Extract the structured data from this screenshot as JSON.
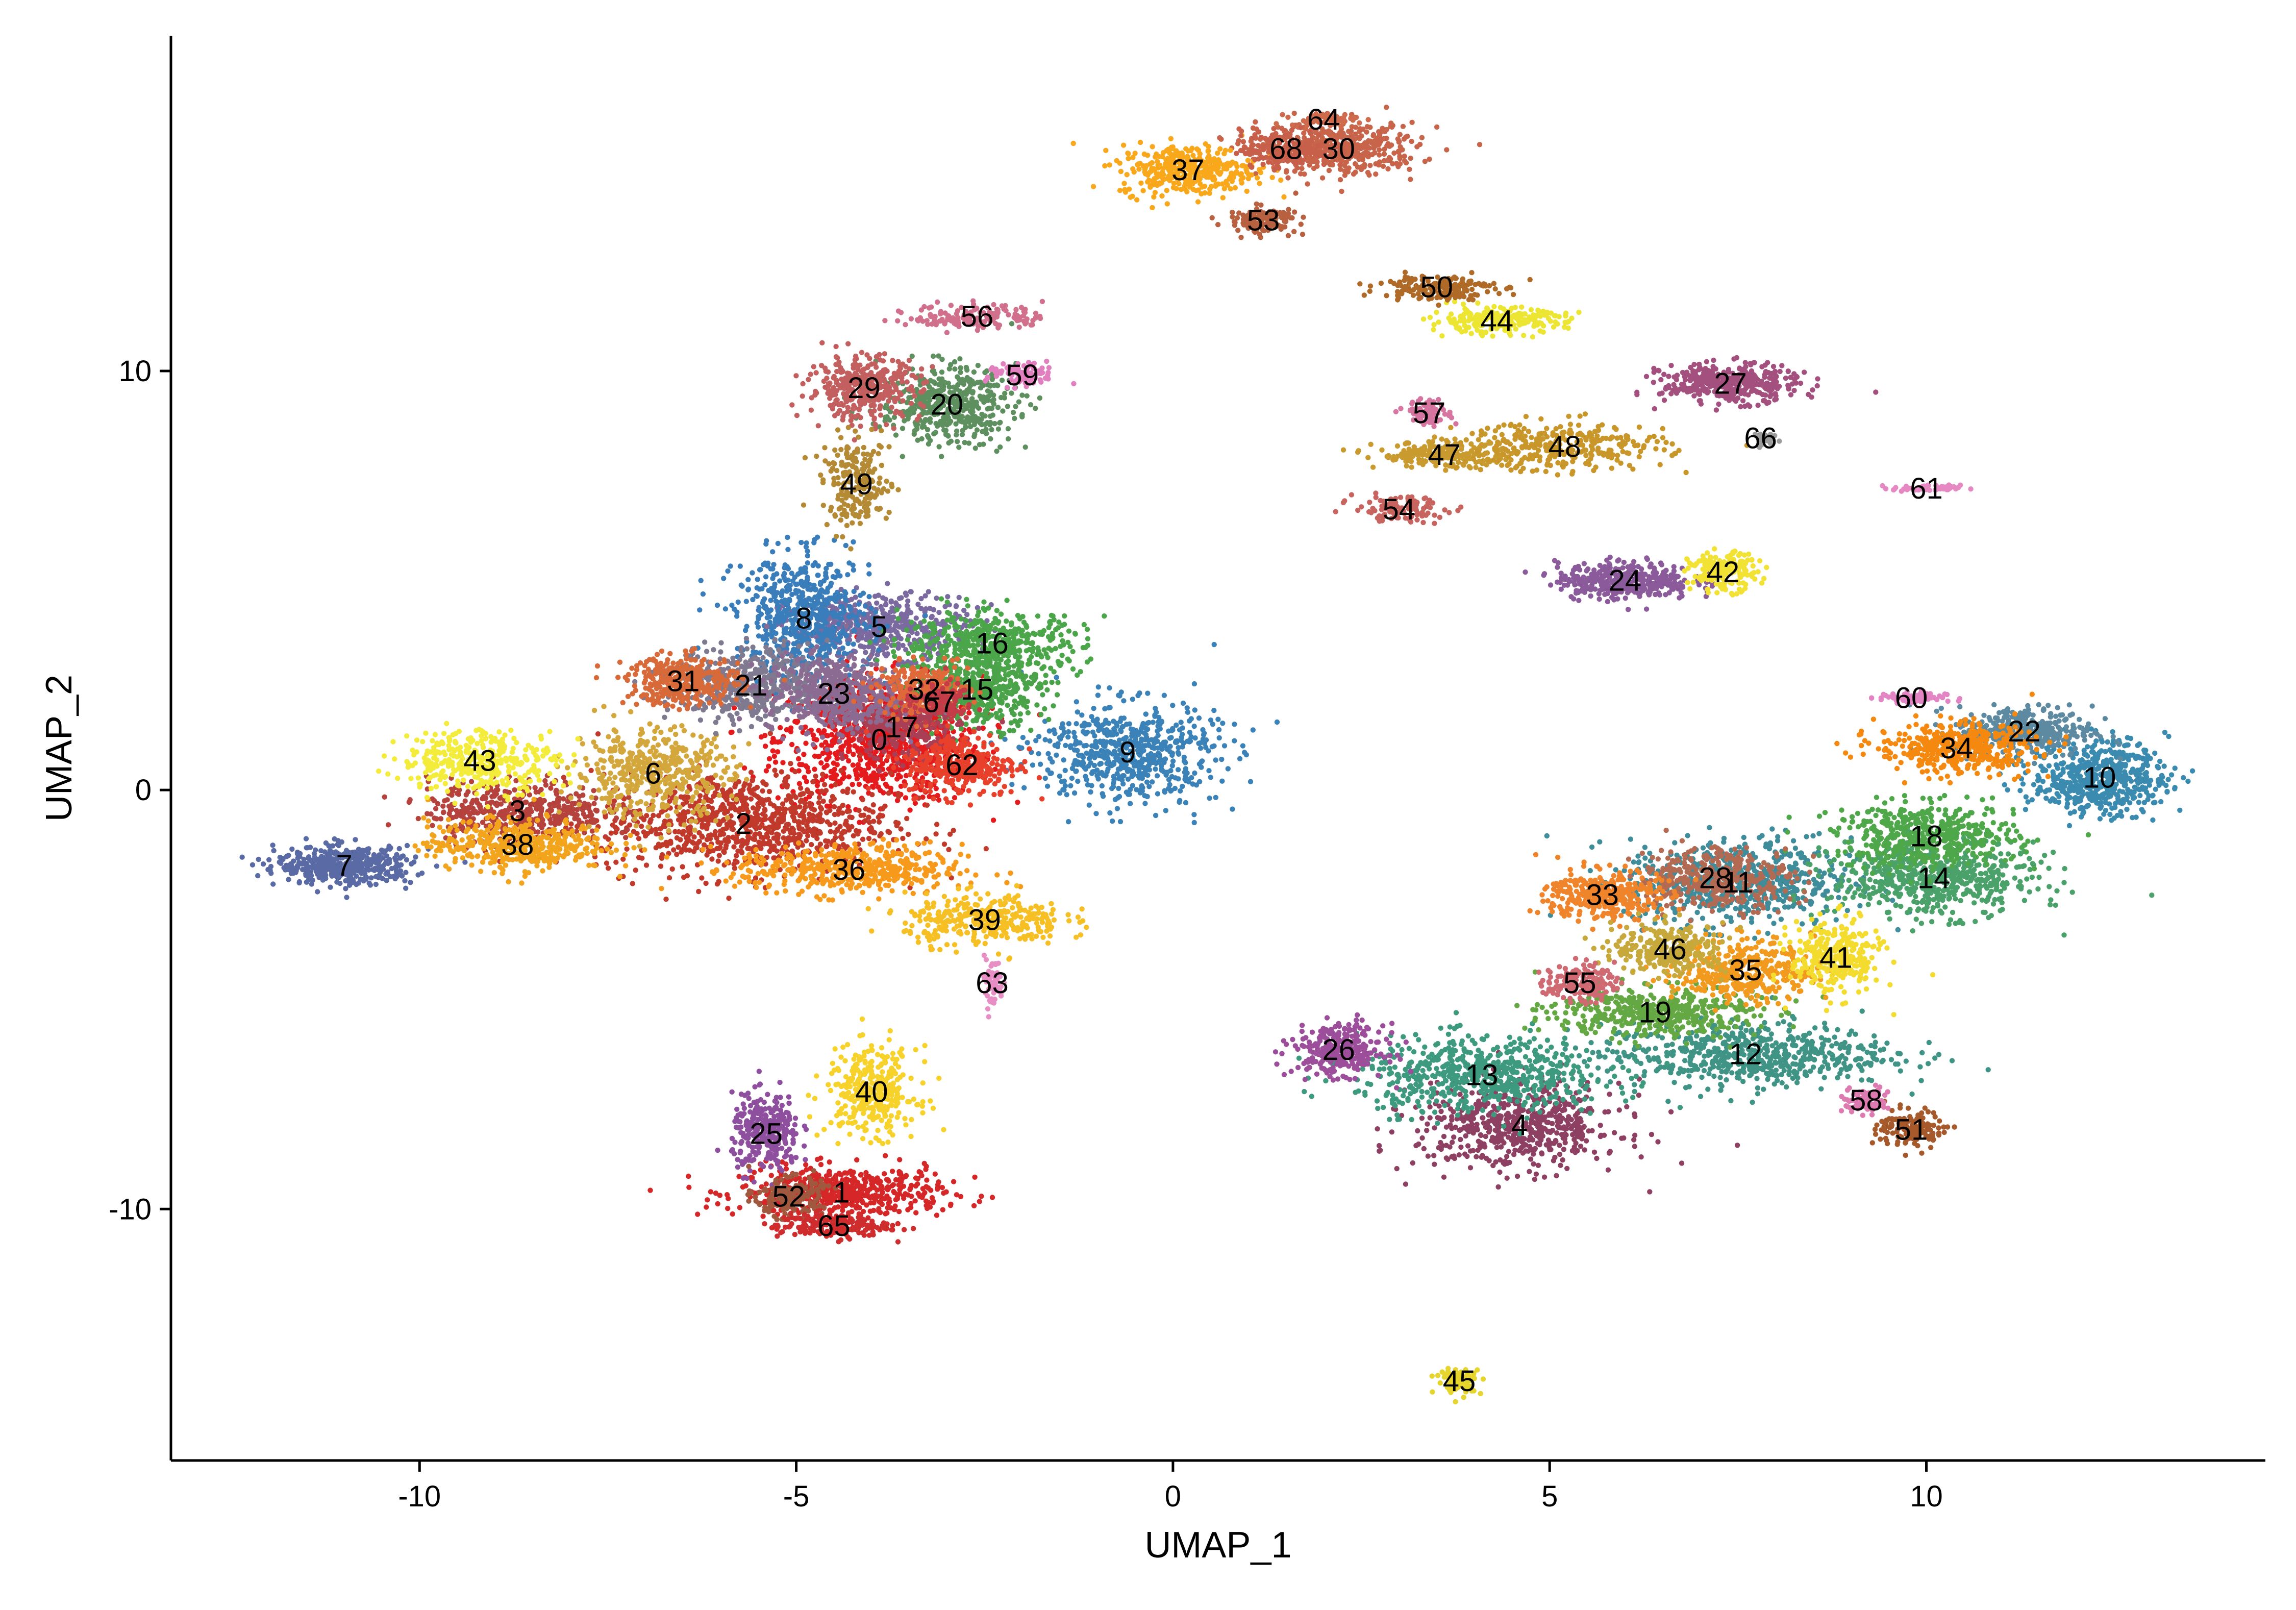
{
  "chart_data": {
    "type": "scatter",
    "title": "",
    "xlabel": "UMAP_1",
    "ylabel": "UMAP_2",
    "xlim": [
      -13.3,
      14.5
    ],
    "ylim": [
      -16.0,
      18.0
    ],
    "x_ticks": [
      -10,
      -5,
      0,
      5,
      10
    ],
    "x_tick_labels": [
      "-10",
      "-5",
      "0",
      "5",
      "10"
    ],
    "y_ticks": [
      -10,
      0,
      10
    ],
    "y_tick_labels": [
      "-10",
      "0",
      "10"
    ],
    "grid": false,
    "legend": "none",
    "clusters": [
      {
        "label": "0",
        "x": -3.9,
        "y": 1.2,
        "sx": 0.9,
        "sy": 1.0,
        "n": 300,
        "color": "#e41a1c"
      },
      {
        "label": "1",
        "x": -4.4,
        "y": -9.6,
        "sx": 0.9,
        "sy": 0.4,
        "n": 180,
        "color": "#d62728"
      },
      {
        "label": "2",
        "x": -5.7,
        "y": -0.8,
        "sx": 1.3,
        "sy": 0.8,
        "n": 300,
        "color": "#c0392b"
      },
      {
        "label": "3",
        "x": -8.7,
        "y": -0.5,
        "sx": 0.8,
        "sy": 0.5,
        "n": 150,
        "color": "#b5423c"
      },
      {
        "label": "4",
        "x": 4.6,
        "y": -8.0,
        "sx": 0.9,
        "sy": 0.7,
        "n": 200,
        "color": "#8e4063"
      },
      {
        "label": "5",
        "x": -3.9,
        "y": 3.9,
        "sx": 0.8,
        "sy": 0.5,
        "n": 160,
        "color": "#7b6aa0"
      },
      {
        "label": "6",
        "x": -6.9,
        "y": 0.4,
        "sx": 0.7,
        "sy": 0.7,
        "n": 150,
        "color": "#d4a73c"
      },
      {
        "label": "7",
        "x": -11.0,
        "y": -1.8,
        "sx": 0.6,
        "sy": 0.3,
        "n": 150,
        "color": "#5a6aa5"
      },
      {
        "label": "8",
        "x": -4.9,
        "y": 4.1,
        "sx": 0.6,
        "sy": 1.0,
        "n": 200,
        "color": "#3a7dbb"
      },
      {
        "label": "9",
        "x": -0.6,
        "y": 0.9,
        "sx": 0.8,
        "sy": 0.8,
        "n": 200,
        "color": "#3a82b8"
      },
      {
        "label": "10",
        "x": 12.3,
        "y": 0.3,
        "sx": 0.6,
        "sy": 0.6,
        "n": 180,
        "color": "#3b8bb0"
      },
      {
        "label": "11",
        "x": 7.5,
        "y": -2.2,
        "sx": 1.0,
        "sy": 0.7,
        "n": 200,
        "color": "#3f8c9a"
      },
      {
        "label": "12",
        "x": 7.6,
        "y": -6.3,
        "sx": 1.3,
        "sy": 0.5,
        "n": 200,
        "color": "#3f9485"
      },
      {
        "label": "13",
        "x": 4.1,
        "y": -6.8,
        "sx": 1.1,
        "sy": 0.6,
        "n": 200,
        "color": "#3d9a7e"
      },
      {
        "label": "14",
        "x": 10.1,
        "y": -2.1,
        "sx": 0.9,
        "sy": 0.6,
        "n": 200,
        "color": "#4aa26a"
      },
      {
        "label": "15",
        "x": -2.6,
        "y": 2.4,
        "sx": 0.6,
        "sy": 0.6,
        "n": 150,
        "color": "#4aa249"
      },
      {
        "label": "16",
        "x": -2.4,
        "y": 3.5,
        "sx": 0.8,
        "sy": 0.5,
        "n": 150,
        "color": "#4aa649"
      },
      {
        "label": "17",
        "x": -3.6,
        "y": 1.5,
        "sx": 0.5,
        "sy": 0.5,
        "n": 100,
        "color": "#a93f55"
      },
      {
        "label": "18",
        "x": 10.0,
        "y": -1.1,
        "sx": 0.8,
        "sy": 0.5,
        "n": 160,
        "color": "#4ea84a"
      },
      {
        "label": "19",
        "x": 6.4,
        "y": -5.3,
        "sx": 0.9,
        "sy": 0.4,
        "n": 150,
        "color": "#64a844"
      },
      {
        "label": "20",
        "x": -3.0,
        "y": 9.2,
        "sx": 0.6,
        "sy": 0.6,
        "n": 150,
        "color": "#5e8f5e"
      },
      {
        "label": "21",
        "x": -5.6,
        "y": 2.5,
        "sx": 0.7,
        "sy": 0.6,
        "n": 160,
        "color": "#7f7a8f"
      },
      {
        "label": "22",
        "x": 11.3,
        "y": 1.4,
        "sx": 0.6,
        "sy": 0.4,
        "n": 120,
        "color": "#5d8aa0"
      },
      {
        "label": "23",
        "x": -4.5,
        "y": 2.3,
        "sx": 0.6,
        "sy": 0.6,
        "n": 150,
        "color": "#8c6b93"
      },
      {
        "label": "24",
        "x": 6.0,
        "y": 5.0,
        "sx": 0.6,
        "sy": 0.3,
        "n": 120,
        "color": "#8a5a9b"
      },
      {
        "label": "25",
        "x": -5.4,
        "y": -8.2,
        "sx": 0.3,
        "sy": 0.6,
        "n": 100,
        "color": "#8e4f9e"
      },
      {
        "label": "26",
        "x": 2.2,
        "y": -6.2,
        "sx": 0.4,
        "sy": 0.4,
        "n": 100,
        "color": "#9c4e9a"
      },
      {
        "label": "27",
        "x": 7.4,
        "y": 9.7,
        "sx": 0.6,
        "sy": 0.3,
        "n": 130,
        "color": "#a3507f"
      },
      {
        "label": "28",
        "x": 7.2,
        "y": -2.1,
        "sx": 0.7,
        "sy": 0.5,
        "n": 120,
        "color": "#b36a52"
      },
      {
        "label": "29",
        "x": -4.1,
        "y": 9.6,
        "sx": 0.5,
        "sy": 0.5,
        "n": 120,
        "color": "#c45f5f"
      },
      {
        "label": "30",
        "x": 2.2,
        "y": 15.3,
        "sx": 0.7,
        "sy": 0.4,
        "n": 150,
        "color": "#c8644a"
      },
      {
        "label": "31",
        "x": -6.5,
        "y": 2.6,
        "sx": 0.5,
        "sy": 0.4,
        "n": 110,
        "color": "#d86a3a"
      },
      {
        "label": "32",
        "x": -3.3,
        "y": 2.4,
        "sx": 0.4,
        "sy": 0.4,
        "n": 80,
        "color": "#e0693a"
      },
      {
        "label": "33",
        "x": 5.7,
        "y": -2.5,
        "sx": 0.5,
        "sy": 0.4,
        "n": 110,
        "color": "#f0842b"
      },
      {
        "label": "34",
        "x": 10.4,
        "y": 1.0,
        "sx": 0.7,
        "sy": 0.4,
        "n": 140,
        "color": "#f5880f"
      },
      {
        "label": "35",
        "x": 7.6,
        "y": -4.3,
        "sx": 0.6,
        "sy": 0.5,
        "n": 120,
        "color": "#f29a1e"
      },
      {
        "label": "36",
        "x": -4.3,
        "y": -1.9,
        "sx": 1.0,
        "sy": 0.4,
        "n": 150,
        "color": "#f79a1c"
      },
      {
        "label": "37",
        "x": 0.2,
        "y": 14.8,
        "sx": 0.6,
        "sy": 0.4,
        "n": 120,
        "color": "#f9a81b"
      },
      {
        "label": "38",
        "x": -8.7,
        "y": -1.3,
        "sx": 0.8,
        "sy": 0.4,
        "n": 140,
        "color": "#f2a41c"
      },
      {
        "label": "39",
        "x": -2.5,
        "y": -3.1,
        "sx": 0.7,
        "sy": 0.4,
        "n": 110,
        "color": "#f6c025"
      },
      {
        "label": "40",
        "x": -4.0,
        "y": -7.2,
        "sx": 0.4,
        "sy": 0.7,
        "n": 110,
        "color": "#f7d22a"
      },
      {
        "label": "41",
        "x": 8.8,
        "y": -4.0,
        "sx": 0.4,
        "sy": 0.6,
        "n": 100,
        "color": "#f3dc2e"
      },
      {
        "label": "42",
        "x": 7.3,
        "y": 5.2,
        "sx": 0.3,
        "sy": 0.3,
        "n": 60,
        "color": "#f2e234"
      },
      {
        "label": "43",
        "x": -9.2,
        "y": 0.7,
        "sx": 0.7,
        "sy": 0.5,
        "n": 120,
        "color": "#f3ec3a"
      },
      {
        "label": "44",
        "x": 4.3,
        "y": 11.2,
        "sx": 0.6,
        "sy": 0.2,
        "n": 80,
        "color": "#ece531"
      },
      {
        "label": "45",
        "x": 3.8,
        "y": -14.1,
        "sx": 0.2,
        "sy": 0.2,
        "n": 30,
        "color": "#e5d52c"
      },
      {
        "label": "46",
        "x": 6.6,
        "y": -3.8,
        "sx": 0.5,
        "sy": 0.4,
        "n": 90,
        "color": "#c7a83a"
      },
      {
        "label": "47",
        "x": 3.6,
        "y": 8.0,
        "sx": 0.6,
        "sy": 0.2,
        "n": 70,
        "color": "#c99a2e"
      },
      {
        "label": "48",
        "x": 5.2,
        "y": 8.2,
        "sx": 0.9,
        "sy": 0.4,
        "n": 100,
        "color": "#c9962a"
      },
      {
        "label": "49",
        "x": -4.2,
        "y": 7.3,
        "sx": 0.3,
        "sy": 0.7,
        "n": 70,
        "color": "#b58a34"
      },
      {
        "label": "50",
        "x": 3.5,
        "y": 12.0,
        "sx": 0.5,
        "sy": 0.2,
        "n": 60,
        "color": "#b06a28"
      },
      {
        "label": "51",
        "x": 9.8,
        "y": -8.1,
        "sx": 0.3,
        "sy": 0.3,
        "n": 50,
        "color": "#a65a2c"
      },
      {
        "label": "52",
        "x": -5.1,
        "y": -9.7,
        "sx": 0.3,
        "sy": 0.3,
        "n": 60,
        "color": "#a0583e"
      },
      {
        "label": "53",
        "x": 1.2,
        "y": 13.6,
        "sx": 0.3,
        "sy": 0.2,
        "n": 50,
        "color": "#b86140"
      },
      {
        "label": "54",
        "x": 3.0,
        "y": 6.7,
        "sx": 0.4,
        "sy": 0.2,
        "n": 40,
        "color": "#c8645f"
      },
      {
        "label": "55",
        "x": 5.4,
        "y": -4.6,
        "sx": 0.3,
        "sy": 0.3,
        "n": 50,
        "color": "#cf6a73"
      },
      {
        "label": "56",
        "x": -2.6,
        "y": 11.3,
        "sx": 0.6,
        "sy": 0.2,
        "n": 50,
        "color": "#d0708d"
      },
      {
        "label": "57",
        "x": 3.4,
        "y": 9.0,
        "sx": 0.2,
        "sy": 0.2,
        "n": 30,
        "color": "#d675a0"
      },
      {
        "label": "58",
        "x": 9.2,
        "y": -7.4,
        "sx": 0.2,
        "sy": 0.2,
        "n": 30,
        "color": "#dd7ab0"
      },
      {
        "label": "59",
        "x": -2.0,
        "y": 9.9,
        "sx": 0.3,
        "sy": 0.2,
        "n": 30,
        "color": "#e27fbe"
      },
      {
        "label": "60",
        "x": 9.8,
        "y": 2.2,
        "sx": 0.3,
        "sy": 0.1,
        "n": 25,
        "color": "#e384c4"
      },
      {
        "label": "61",
        "x": 10.0,
        "y": 7.2,
        "sx": 0.3,
        "sy": 0.05,
        "n": 20,
        "color": "#e688c2"
      },
      {
        "label": "62",
        "x": -2.8,
        "y": 0.6,
        "sx": 0.5,
        "sy": 0.5,
        "n": 100,
        "color": "#e8402a"
      },
      {
        "label": "63",
        "x": -2.4,
        "y": -4.6,
        "sx": 0.1,
        "sy": 0.4,
        "n": 20,
        "color": "#e78fc5"
      },
      {
        "label": "64",
        "x": 2.0,
        "y": 16.0,
        "sx": 0.3,
        "sy": 0.1,
        "n": 20,
        "color": "#cf6b4c"
      },
      {
        "label": "65",
        "x": -4.5,
        "y": -10.4,
        "sx": 0.5,
        "sy": 0.2,
        "n": 60,
        "color": "#cf2d2d"
      },
      {
        "label": "66",
        "x": 7.8,
        "y": 8.4,
        "sx": 0.1,
        "sy": 0.1,
        "n": 10,
        "color": "#9c9c9c"
      },
      {
        "label": "67",
        "x": -3.1,
        "y": 2.1,
        "sx": 0.3,
        "sy": 0.3,
        "n": 40,
        "color": "#c43c48"
      },
      {
        "label": "68",
        "x": 1.5,
        "y": 15.3,
        "sx": 0.4,
        "sy": 0.3,
        "n": 60,
        "color": "#c75f4a"
      }
    ]
  }
}
